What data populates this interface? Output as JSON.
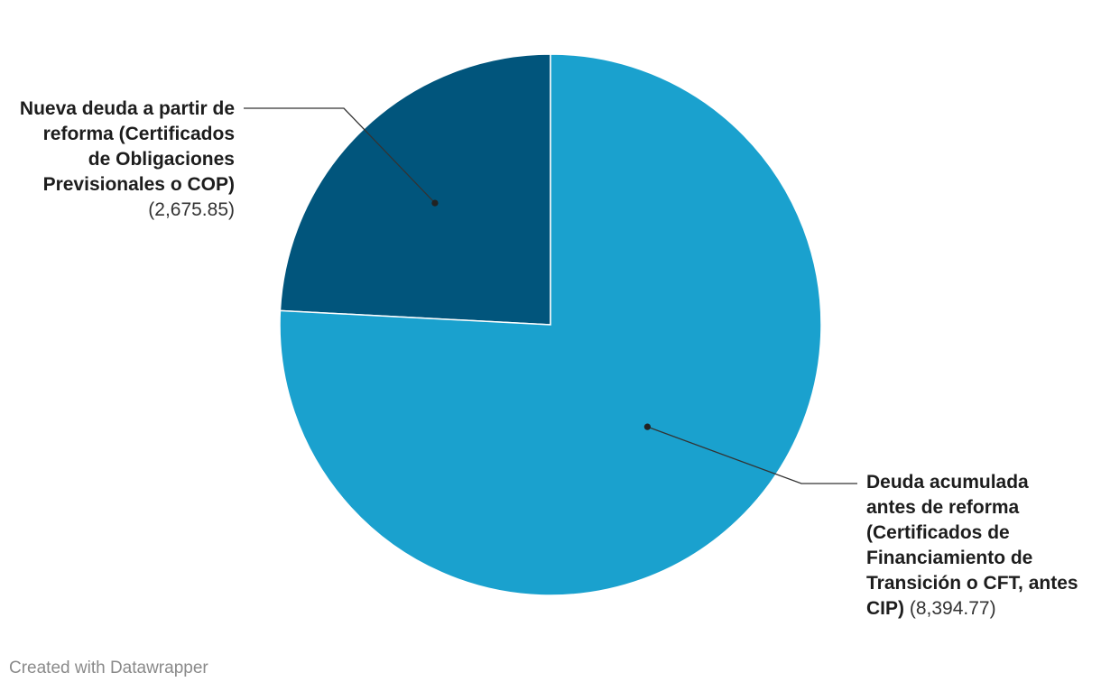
{
  "chart_data": {
    "type": "pie",
    "slices": [
      {
        "label": "Nueva deuda a partir de reforma (Certificados de Obligaciones Previsionales o COP)",
        "value": 2675.85,
        "value_text": "(2,675.85)",
        "color": "#01557c"
      },
      {
        "label": "Deuda acumulada antes de reforma (Certificados de Financiamiento de Transición o CFT, antes CIP)",
        "value": 8394.77,
        "value_text": "(8,394.77)",
        "color": "#1aa1ce"
      }
    ],
    "start_angle": "12 o'clock, counterclockwise",
    "legend": "none (direct labels)"
  },
  "footer": {
    "credit": "Created with Datawrapper"
  }
}
